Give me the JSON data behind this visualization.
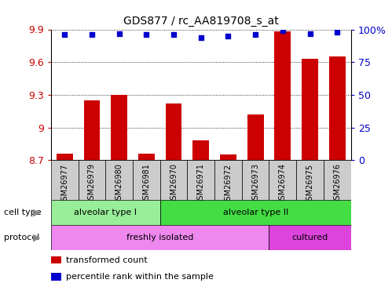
{
  "title": "GDS877 / rc_AA819708_s_at",
  "samples": [
    "GSM26977",
    "GSM26979",
    "GSM26980",
    "GSM26981",
    "GSM26970",
    "GSM26971",
    "GSM26972",
    "GSM26973",
    "GSM26974",
    "GSM26975",
    "GSM26976"
  ],
  "bar_values": [
    8.76,
    9.25,
    9.3,
    8.76,
    9.22,
    8.88,
    8.75,
    9.12,
    9.88,
    9.63,
    9.65
  ],
  "percentile_values": [
    96,
    96,
    97,
    96,
    96,
    94,
    95,
    96,
    99,
    97,
    98
  ],
  "ylim": [
    8.7,
    9.9
  ],
  "yticks_left": [
    8.7,
    9.0,
    9.3,
    9.6,
    9.9
  ],
  "ytick_labels_left": [
    "8.7",
    "9",
    "9.3",
    "9.6",
    "9.9"
  ],
  "yticks_right": [
    0,
    25,
    50,
    75,
    100
  ],
  "ytick_labels_right": [
    "0",
    "25",
    "50",
    "75",
    "100%"
  ],
  "bar_color": "#cc0000",
  "dot_color": "#0000cc",
  "cell_type_groups": [
    {
      "label": "alveolar type I",
      "start": 0,
      "end": 4,
      "color": "#99ee99"
    },
    {
      "label": "alveolar type II",
      "start": 4,
      "end": 11,
      "color": "#44dd44"
    }
  ],
  "protocol_groups": [
    {
      "label": "freshly isolated",
      "start": 0,
      "end": 8,
      "color": "#ee88ee"
    },
    {
      "label": "cultured",
      "start": 8,
      "end": 11,
      "color": "#dd44dd"
    }
  ],
  "legend_items": [
    {
      "color": "#cc0000",
      "label": "transformed count"
    },
    {
      "color": "#0000cc",
      "label": "percentile rank within the sample"
    }
  ],
  "cell_type_label": "cell type",
  "protocol_label": "protocol",
  "background_color": "#ffffff",
  "percentile_scale": [
    0,
    100
  ],
  "bar_width": 0.6,
  "sample_box_color": "#cccccc",
  "left_label_color": "#888888"
}
